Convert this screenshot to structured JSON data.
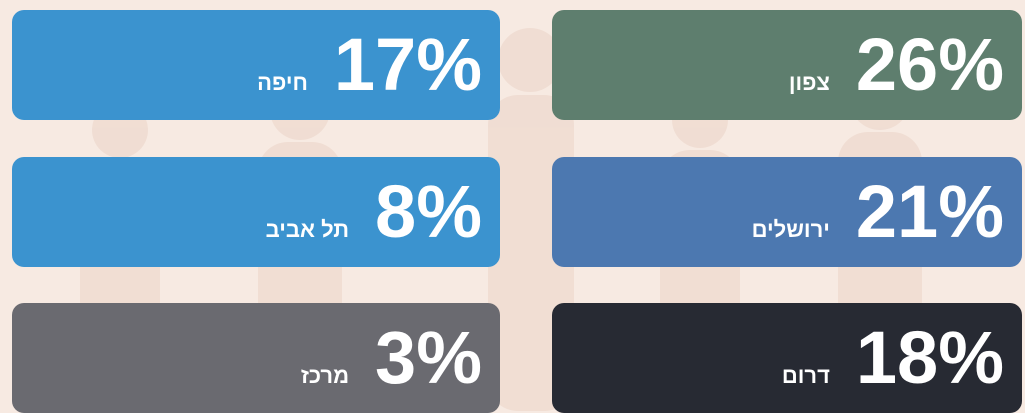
{
  "tiles": [
    {
      "label": "צפון",
      "value": "26%"
    },
    {
      "label": "ירושלים",
      "value": "21%"
    },
    {
      "label": "דרום",
      "value": "18%"
    },
    {
      "label": "חיפה",
      "value": "17%"
    },
    {
      "label": "תל אביב",
      "value": "8%"
    },
    {
      "label": "מרכז",
      "value": "3%"
    }
  ]
}
